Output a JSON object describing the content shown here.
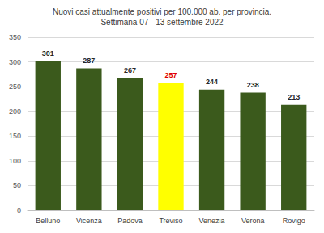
{
  "chart_data": {
    "type": "bar",
    "title": "Nuovi casi attualmente positivi per 100.000 ab. per provincia.",
    "subtitle": "Settimana 07 - 13 settembre 2022",
    "categories": [
      "Belluno",
      "Vicenza",
      "Padova",
      "Treviso",
      "Venezia",
      "Verona",
      "Rovigo"
    ],
    "values": [
      301,
      287,
      267,
      257,
      244,
      238,
      213
    ],
    "colors": [
      "#3b5a1c",
      "#3b5a1c",
      "#3b5a1c",
      "#ffff00",
      "#3b5a1c",
      "#3b5a1c",
      "#3b5a1c"
    ],
    "ylim": [
      0,
      350
    ],
    "yticks": [
      0,
      50,
      100,
      150,
      200,
      250,
      300,
      350
    ],
    "grid": true,
    "data_labels": true
  }
}
